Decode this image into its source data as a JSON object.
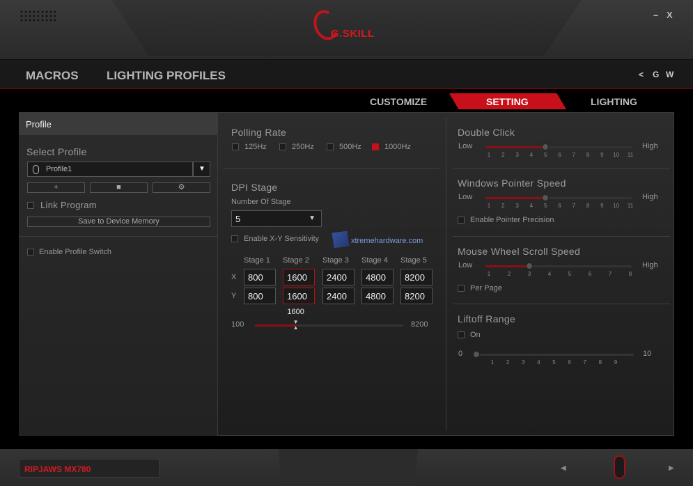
{
  "window": {
    "logo_text": "G.SKILL",
    "minimize": "–",
    "close": "X"
  },
  "nav": {
    "items": [
      "MACROS",
      "LIGHTING PROFILES"
    ],
    "right_icon": "share-icon",
    "right_g": "G",
    "right_w": "W"
  },
  "tabs": {
    "items": [
      "CUSTOMIZE",
      "SETTING",
      "LIGHTING"
    ],
    "active": "SETTING"
  },
  "accent": "#c8101a",
  "profile": {
    "header": "Profile",
    "select_label": "Select Profile",
    "selected": "Profile1",
    "link_program": "Link Program",
    "save": "Save to Device Memory",
    "enable_switch": "Enable Profile Switch"
  },
  "polling": {
    "title": "Polling Rate",
    "options": [
      "125Hz",
      "250Hz",
      "500Hz",
      "1000Hz"
    ],
    "selected": "1000Hz"
  },
  "dpi": {
    "title": "DPI Stage",
    "num_label": "Number Of Stage",
    "num_value": "5",
    "xy_label": "Enable X-Y Sensitivity",
    "stages": [
      "Stage 1",
      "Stage 2",
      "Stage 3",
      "Stage 4",
      "Stage 5"
    ],
    "x_label": "X",
    "y_label": "Y",
    "x": [
      "800",
      "1600",
      "2400",
      "4800",
      "8200"
    ],
    "y": [
      "800",
      "1600",
      "2400",
      "4800",
      "8200"
    ],
    "selected_stage": 2,
    "slider_min": "100",
    "slider_max": "8200",
    "slider_value": "1600"
  },
  "double_click": {
    "title": "Double Click",
    "low": "Low",
    "high": "High",
    "ticks": [
      "1",
      "2",
      "3",
      "4",
      "5",
      "6",
      "7",
      "8",
      "9",
      "10",
      "11"
    ],
    "value": 5
  },
  "pointer": {
    "title": "Windows Pointer Speed",
    "low": "Low",
    "high": "High",
    "ticks": [
      "1",
      "2",
      "3",
      "4",
      "5",
      "6",
      "7",
      "8",
      "9",
      "10",
      "11"
    ],
    "value": 5,
    "precision": "Enable Pointer Precision"
  },
  "scroll": {
    "title": "Mouse Wheel Scroll Speed",
    "low": "Low",
    "high": "High",
    "ticks": [
      "1",
      "2",
      "3",
      "4",
      "5",
      "6",
      "7",
      "8"
    ],
    "value": 3,
    "per_page": "Per Page"
  },
  "liftoff": {
    "title": "Liftoff Range",
    "on": "On",
    "low": "0",
    "high": "10",
    "ticks": [
      "1",
      "2",
      "3",
      "4",
      "5",
      "6",
      "7",
      "8",
      "9"
    ],
    "value": 0
  },
  "watermark": "xtremehardware.com",
  "footer": {
    "model": "RIPJAWS MX780",
    "prev": "◀",
    "next": "▶"
  }
}
